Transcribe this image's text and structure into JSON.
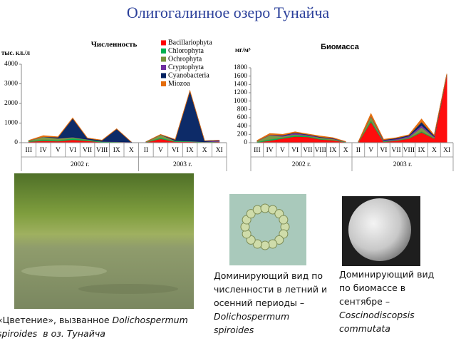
{
  "title": "Олигогалинное озеро Тунайча",
  "chart_data": [
    {
      "type": "area",
      "title": "Численность",
      "y_label": "тыс. кл./л",
      "ylim": [
        0,
        4000
      ],
      "yticks": [
        0,
        1000,
        2000,
        3000,
        4000
      ],
      "legend": true,
      "groups": [
        {
          "label": "2002 г.",
          "categories": [
            "III",
            "IV",
            "V",
            "VI",
            "VII",
            "VIII",
            "IX",
            "X"
          ]
        },
        {
          "label": "2003 г.",
          "categories": [
            "II",
            "V",
            "VI",
            "IX",
            "X",
            "XI"
          ]
        }
      ],
      "series": [
        {
          "name": "Bacillariophyta",
          "color": "#ff0000",
          "values": [
            50,
            100,
            80,
            150,
            100,
            30,
            20,
            10,
            20,
            200,
            50,
            50,
            20,
            50
          ]
        },
        {
          "name": "Chlorophyta",
          "color": "#00b050",
          "values": [
            30,
            50,
            40,
            80,
            50,
            20,
            20,
            10,
            10,
            50,
            30,
            20,
            10,
            10
          ]
        },
        {
          "name": "Ochrophyta",
          "color": "#77933c",
          "values": [
            20,
            150,
            100,
            50,
            20,
            10,
            10,
            5,
            10,
            150,
            20,
            10,
            10,
            5
          ]
        },
        {
          "name": "Cryptophyta",
          "color": "#7030a0",
          "values": [
            10,
            10,
            10,
            10,
            10,
            10,
            10,
            10,
            5,
            10,
            10,
            10,
            5,
            60
          ]
        },
        {
          "name": "Cyanobacteria",
          "color": "#002060",
          "values": [
            0,
            0,
            50,
            950,
            50,
            50,
            640,
            0,
            0,
            0,
            50,
            2550,
            50,
            0
          ]
        },
        {
          "name": "Miozoa",
          "color": "#e46c0a",
          "values": [
            10,
            50,
            20,
            20,
            10,
            10,
            10,
            0,
            0,
            10,
            10,
            10,
            0,
            0
          ]
        }
      ]
    },
    {
      "type": "area",
      "title": "Биомасса",
      "y_label": "мг/м³",
      "ylim": [
        0,
        1800
      ],
      "yticks": [
        0,
        200,
        400,
        600,
        800,
        1000,
        1200,
        1400,
        1600,
        1800
      ],
      "legend": false,
      "groups": [
        {
          "label": "2002 г.",
          "categories": [
            "III",
            "IV",
            "V",
            "VI",
            "VII",
            "VIII",
            "IX",
            "X"
          ]
        },
        {
          "label": "2003 г.",
          "categories": [
            "II",
            "V",
            "VI",
            "VII",
            "VIII",
            "IX",
            "X",
            "XI"
          ]
        }
      ],
      "series": [
        {
          "name": "Bacillariophyta",
          "color": "#ff0000",
          "values": [
            10,
            50,
            100,
            150,
            140,
            80,
            60,
            10,
            10,
            500,
            20,
            50,
            100,
            250,
            100,
            1620
          ]
        },
        {
          "name": "Chlorophyta",
          "color": "#00b050",
          "values": [
            10,
            30,
            20,
            30,
            20,
            10,
            10,
            5,
            5,
            30,
            10,
            10,
            10,
            20,
            10,
            10
          ]
        },
        {
          "name": "Ochrophyta",
          "color": "#77933c",
          "values": [
            20,
            100,
            30,
            20,
            10,
            30,
            20,
            5,
            5,
            100,
            10,
            10,
            20,
            100,
            20,
            10
          ]
        },
        {
          "name": "Cryptophyta",
          "color": "#7030a0",
          "values": [
            5,
            10,
            20,
            30,
            20,
            10,
            10,
            5,
            0,
            10,
            20,
            20,
            30,
            50,
            20,
            10
          ]
        },
        {
          "name": "Cyanobacteria",
          "color": "#002060",
          "values": [
            0,
            0,
            10,
            10,
            10,
            10,
            10,
            0,
            0,
            0,
            10,
            20,
            20,
            80,
            20,
            0
          ]
        },
        {
          "name": "Miozoa",
          "color": "#e46c0a",
          "values": [
            10,
            30,
            20,
            20,
            10,
            20,
            10,
            5,
            0,
            60,
            10,
            10,
            10,
            70,
            10,
            5
          ]
        }
      ]
    }
  ],
  "captions": [
    {
      "lines": [
        [
          {
            "text": "«Цветение», вызванное ",
            "italic": false
          },
          {
            "text": "Dolichospermum",
            "italic": true
          }
        ],
        [
          {
            "text": "spiroides  в оз. Тунайча",
            "italic": true
          }
        ]
      ]
    },
    {
      "lines": [
        [
          {
            "text": "Доминирующий вид по",
            "italic": false
          }
        ],
        [
          {
            "text": "численности в летний и",
            "italic": false
          }
        ],
        [
          {
            "text": "осенний периоды –",
            "italic": false
          }
        ],
        [
          {
            "text": "Dolichospermum",
            "italic": true
          }
        ],
        [
          {
            "text": "spiroides",
            "italic": true
          }
        ]
      ]
    },
    {
      "lines": [
        [
          {
            "text": "Доминирующий вид",
            "italic": false
          }
        ],
        [
          {
            "text": "по биомассе в",
            "italic": false
          }
        ],
        [
          {
            "text": "сентябре –",
            "italic": false
          }
        ],
        [
          {
            "text": "Coscinodiscopsis",
            "italic": true
          }
        ],
        [
          {
            "text": "commutata",
            "italic": true
          }
        ]
      ]
    }
  ]
}
